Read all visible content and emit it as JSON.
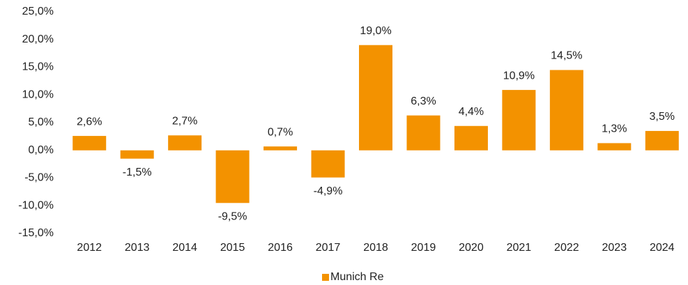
{
  "chart_data": {
    "type": "bar",
    "categories": [
      "2012",
      "2013",
      "2014",
      "2015",
      "2016",
      "2017",
      "2018",
      "2019",
      "2020",
      "2021",
      "2022",
      "2023",
      "2024"
    ],
    "series": [
      {
        "name": "Munich Re",
        "color": "#f39200",
        "values": [
          2.6,
          -1.5,
          2.7,
          -9.5,
          0.7,
          -4.9,
          19.0,
          6.3,
          4.4,
          10.9,
          14.5,
          1.3,
          3.5
        ],
        "value_labels": [
          "2,6%",
          "-1,5%",
          "2,7%",
          "-9,5%",
          "0,7%",
          "-4,9%",
          "19,0%",
          "6,3%",
          "4,4%",
          "10,9%",
          "14,5%",
          "1,3%",
          "3,5%"
        ]
      }
    ],
    "ylim": [
      -15,
      25
    ],
    "yticks": [
      {
        "value": -15,
        "label": "-15,0%"
      },
      {
        "value": -10,
        "label": "-10,0%"
      },
      {
        "value": -5,
        "label": "-5,0%"
      },
      {
        "value": 0,
        "label": "0,0%"
      },
      {
        "value": 5,
        "label": "5,0%"
      },
      {
        "value": 10,
        "label": "10,0%"
      },
      {
        "value": 15,
        "label": "15,0%"
      },
      {
        "value": 20,
        "label": "20,0%"
      },
      {
        "value": 25,
        "label": "25,0%"
      }
    ],
    "grid": false,
    "legend": "bottom"
  }
}
